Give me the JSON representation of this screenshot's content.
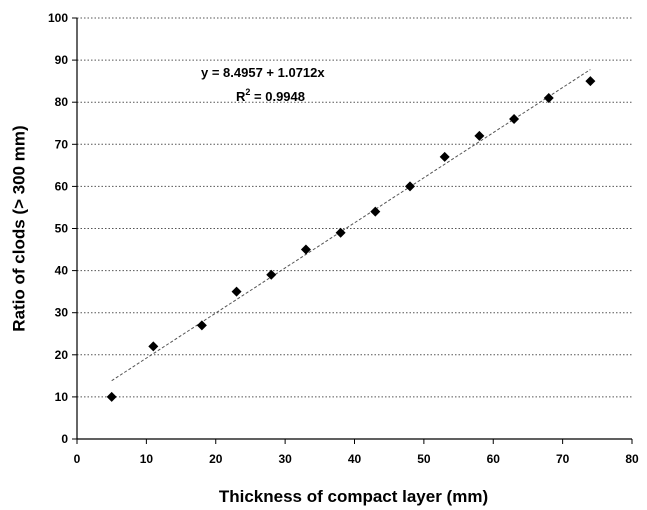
{
  "chart_data": {
    "type": "scatter",
    "xlabel": "Thickness of compact layer (mm)",
    "ylabel": "Ratio of clods (> 300 mm)",
    "xlim": [
      0,
      80
    ],
    "ylim": [
      0,
      100
    ],
    "xticks": [
      "0",
      "10",
      "20",
      "30",
      "40",
      "50",
      "60",
      "70",
      "80"
    ],
    "yticks": [
      "0",
      "10",
      "20",
      "30",
      "40",
      "50",
      "60",
      "70",
      "80",
      "90",
      "100"
    ],
    "grid": "horizontal-dotted",
    "series": [
      {
        "x": [
          5,
          11,
          18,
          23,
          28,
          33,
          38,
          43,
          48,
          53,
          58,
          63,
          68,
          74
        ],
        "y": [
          10,
          22,
          27,
          35,
          39,
          45,
          49,
          54,
          60,
          67,
          72,
          76,
          81,
          85
        ],
        "marker": "diamond",
        "color": "#000000"
      }
    ],
    "trendline": {
      "intercept": 8.4957,
      "slope": 1.0712,
      "x_range": [
        5,
        74
      ],
      "style": "dashed",
      "color": "#555555"
    },
    "annotations": {
      "equation": "y = 8.4957 + 1.0712x",
      "r2_prefix": "R",
      "r2_sup": "2",
      "r2_value": " = 0.9948"
    }
  }
}
